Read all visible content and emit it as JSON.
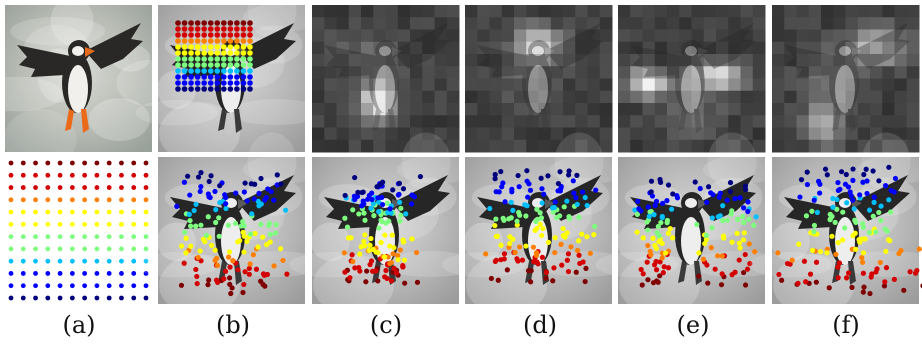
{
  "figure": {
    "captions": [
      "(a)",
      "(b)",
      "(c)",
      "(d)",
      "(e)",
      "(f)"
    ],
    "background_color": "#ffffff",
    "colormap": [
      "#00007f",
      "#0000ff",
      "#00bfff",
      "#7fff7f",
      "#ffff00",
      "#ff7f00",
      "#d40000",
      "#7f0000"
    ],
    "grid_rows": 12,
    "grid_cols": 12,
    "panels": [
      {
        "id": "a",
        "top": "puffin-photo",
        "bottom": "point-grid"
      },
      {
        "id": "b",
        "top": "grid-overlay-on-puffin",
        "bottom": "deformed-points"
      },
      {
        "id": "c",
        "top": "attention-map",
        "bottom": "deformed-points"
      },
      {
        "id": "d",
        "top": "attention-map",
        "bottom": "deformed-points"
      },
      {
        "id": "e",
        "top": "attention-map",
        "bottom": "deformed-points"
      },
      {
        "id": "f",
        "top": "attention-map",
        "bottom": "deformed-points"
      }
    ]
  }
}
